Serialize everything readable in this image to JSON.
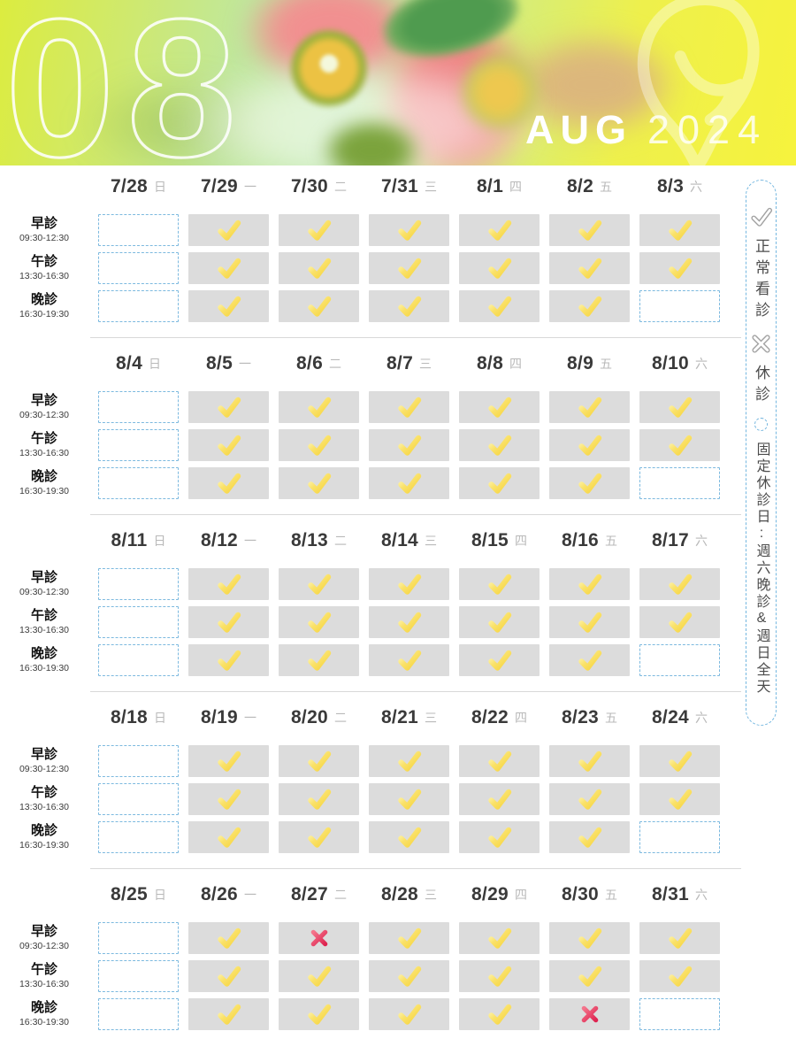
{
  "header": {
    "month_number": "08",
    "month_name": "AUG",
    "year": "2024"
  },
  "legend": {
    "items": [
      {
        "icon": "check-icon",
        "label": "正常看診"
      },
      {
        "icon": "x-icon",
        "label": "休診"
      },
      {
        "icon": "dashed-circle-icon",
        "label": "固定休診日:週六晚診&週日全天"
      }
    ]
  },
  "sessions": [
    {
      "name": "早診",
      "time": "09:30-12:30"
    },
    {
      "name": "午診",
      "time": "13:30-16:30"
    },
    {
      "name": "晚診",
      "time": "16:30-19:30"
    }
  ],
  "status_meanings": {
    "open": "正常看診",
    "closed": "休診",
    "rest": "固定休診"
  },
  "weeks": [
    {
      "days": [
        {
          "date": "7/28",
          "weekday": "日"
        },
        {
          "date": "7/29",
          "weekday": "一"
        },
        {
          "date": "7/30",
          "weekday": "二"
        },
        {
          "date": "7/31",
          "weekday": "三"
        },
        {
          "date": "8/1",
          "weekday": "四"
        },
        {
          "date": "8/2",
          "weekday": "五"
        },
        {
          "date": "8/3",
          "weekday": "六"
        }
      ],
      "rows": [
        [
          "rest",
          "open",
          "open",
          "open",
          "open",
          "open",
          "open"
        ],
        [
          "rest",
          "open",
          "open",
          "open",
          "open",
          "open",
          "open"
        ],
        [
          "rest",
          "open",
          "open",
          "open",
          "open",
          "open",
          "rest"
        ]
      ]
    },
    {
      "days": [
        {
          "date": "8/4",
          "weekday": "日"
        },
        {
          "date": "8/5",
          "weekday": "一"
        },
        {
          "date": "8/6",
          "weekday": "二"
        },
        {
          "date": "8/7",
          "weekday": "三"
        },
        {
          "date": "8/8",
          "weekday": "四"
        },
        {
          "date": "8/9",
          "weekday": "五"
        },
        {
          "date": "8/10",
          "weekday": "六"
        }
      ],
      "rows": [
        [
          "rest",
          "open",
          "open",
          "open",
          "open",
          "open",
          "open"
        ],
        [
          "rest",
          "open",
          "open",
          "open",
          "open",
          "open",
          "open"
        ],
        [
          "rest",
          "open",
          "open",
          "open",
          "open",
          "open",
          "rest"
        ]
      ]
    },
    {
      "days": [
        {
          "date": "8/11",
          "weekday": "日"
        },
        {
          "date": "8/12",
          "weekday": "一"
        },
        {
          "date": "8/13",
          "weekday": "二"
        },
        {
          "date": "8/14",
          "weekday": "三"
        },
        {
          "date": "8/15",
          "weekday": "四"
        },
        {
          "date": "8/16",
          "weekday": "五"
        },
        {
          "date": "8/17",
          "weekday": "六"
        }
      ],
      "rows": [
        [
          "rest",
          "open",
          "open",
          "open",
          "open",
          "open",
          "open"
        ],
        [
          "rest",
          "open",
          "open",
          "open",
          "open",
          "open",
          "open"
        ],
        [
          "rest",
          "open",
          "open",
          "open",
          "open",
          "open",
          "rest"
        ]
      ]
    },
    {
      "days": [
        {
          "date": "8/18",
          "weekday": "日"
        },
        {
          "date": "8/19",
          "weekday": "一"
        },
        {
          "date": "8/20",
          "weekday": "二"
        },
        {
          "date": "8/21",
          "weekday": "三"
        },
        {
          "date": "8/22",
          "weekday": "四"
        },
        {
          "date": "8/23",
          "weekday": "五"
        },
        {
          "date": "8/24",
          "weekday": "六"
        }
      ],
      "rows": [
        [
          "rest",
          "open",
          "open",
          "open",
          "open",
          "open",
          "open"
        ],
        [
          "rest",
          "open",
          "open",
          "open",
          "open",
          "open",
          "open"
        ],
        [
          "rest",
          "open",
          "open",
          "open",
          "open",
          "open",
          "rest"
        ]
      ]
    },
    {
      "days": [
        {
          "date": "8/25",
          "weekday": "日"
        },
        {
          "date": "8/26",
          "weekday": "一"
        },
        {
          "date": "8/27",
          "weekday": "二"
        },
        {
          "date": "8/28",
          "weekday": "三"
        },
        {
          "date": "8/29",
          "weekday": "四"
        },
        {
          "date": "8/30",
          "weekday": "五"
        },
        {
          "date": "8/31",
          "weekday": "六"
        }
      ],
      "rows": [
        [
          "rest",
          "open",
          "closed",
          "open",
          "open",
          "open",
          "open"
        ],
        [
          "rest",
          "open",
          "open",
          "open",
          "open",
          "open",
          "open"
        ],
        [
          "rest",
          "open",
          "open",
          "open",
          "open",
          "closed",
          "rest"
        ]
      ]
    }
  ],
  "colors": {
    "check_yellow_light": "#fef7b8",
    "check_yellow": "#f6d43e",
    "x_red_light": "#f4758c",
    "x_red": "#de2450",
    "cell_gray": "#dcdcdc",
    "rest_border_blue": "#7cb9df",
    "legend_border_blue": "#74b7e0",
    "date_text": "#3a3a3a",
    "weekday_text": "#b9b9b9"
  }
}
